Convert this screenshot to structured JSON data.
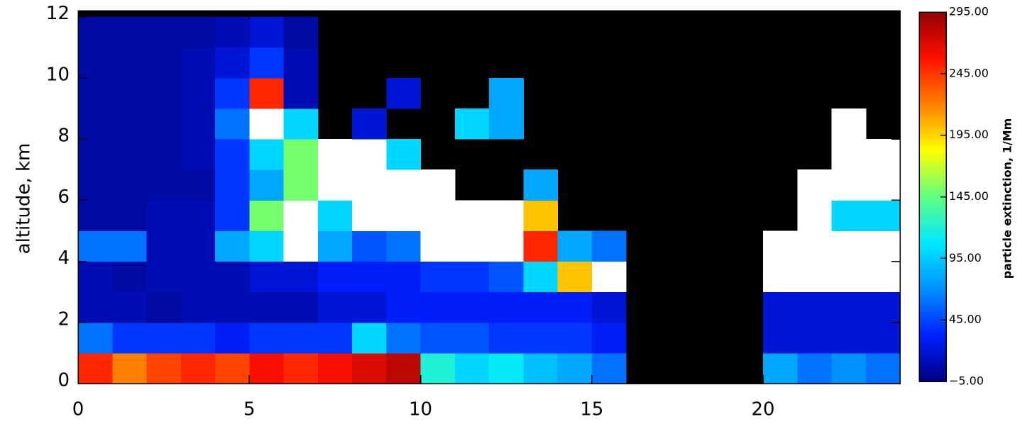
{
  "chart_data": {
    "type": "heatmap",
    "ylabel": "altitude, km",
    "colorbar_label": "particle extinction, 1/Mm",
    "x_edges": [
      0,
      1,
      2,
      3,
      4,
      5,
      6,
      7,
      8,
      9,
      10,
      11,
      12,
      13,
      14,
      15,
      16,
      17,
      18,
      19,
      20,
      21,
      22,
      23,
      24
    ],
    "y_edges": [
      0,
      1,
      2,
      3,
      4,
      5,
      6,
      7,
      8,
      9,
      10,
      11,
      12
    ],
    "z": [
      [
        250,
        220,
        240,
        250,
        240,
        260,
        250,
        260,
        270,
        280,
        120,
        100,
        110,
        90,
        80,
        60,
        null,
        null,
        null,
        null,
        80,
        60,
        70,
        60
      ],
      [
        60,
        40,
        40,
        40,
        30,
        40,
        40,
        40,
        100,
        60,
        50,
        50,
        40,
        40,
        40,
        30,
        null,
        null,
        null,
        null,
        20,
        20,
        20,
        20
      ],
      [
        10,
        10,
        5,
        10,
        10,
        10,
        10,
        20,
        20,
        30,
        30,
        30,
        30,
        30,
        30,
        20,
        null,
        null,
        null,
        null,
        20,
        20,
        20,
        20
      ],
      [
        10,
        5,
        10,
        10,
        10,
        20,
        20,
        30,
        30,
        30,
        40,
        40,
        50,
        100,
        200,
        300,
        null,
        null,
        null,
        null,
        300,
        300,
        300,
        300
      ],
      [
        60,
        60,
        10,
        10,
        80,
        100,
        300,
        80,
        50,
        60,
        300,
        300,
        300,
        250,
        80,
        60,
        null,
        null,
        null,
        null,
        300,
        300,
        300,
        300
      ],
      [
        5,
        5,
        10,
        10,
        40,
        150,
        300,
        100,
        300,
        300,
        300,
        300,
        300,
        200,
        null,
        null,
        null,
        null,
        null,
        null,
        null,
        300,
        100,
        100
      ],
      [
        5,
        5,
        5,
        5,
        40,
        80,
        150,
        300,
        300,
        300,
        300,
        null,
        null,
        80,
        null,
        null,
        null,
        null,
        null,
        null,
        null,
        300,
        300,
        300
      ],
      [
        5,
        5,
        5,
        10,
        40,
        100,
        150,
        300,
        300,
        100,
        null,
        null,
        null,
        null,
        null,
        null,
        null,
        null,
        null,
        null,
        null,
        null,
        300,
        300
      ],
      [
        5,
        5,
        5,
        10,
        60,
        300,
        100,
        null,
        20,
        null,
        null,
        100,
        80,
        null,
        null,
        null,
        null,
        null,
        null,
        null,
        null,
        null,
        300,
        null
      ],
      [
        5,
        5,
        5,
        10,
        40,
        250,
        10,
        null,
        null,
        20,
        null,
        null,
        80,
        null,
        null,
        null,
        null,
        null,
        null,
        null,
        null,
        null,
        null,
        null
      ],
      [
        5,
        5,
        5,
        10,
        20,
        40,
        10,
        null,
        null,
        null,
        null,
        null,
        null,
        null,
        null,
        null,
        null,
        null,
        null,
        null,
        null,
        null,
        null,
        null
      ],
      [
        5,
        5,
        5,
        5,
        10,
        20,
        5,
        null,
        null,
        null,
        null,
        null,
        null,
        null,
        null,
        null,
        null,
        null,
        null,
        null,
        null,
        null,
        null,
        null
      ]
    ],
    "xlim": [
      0,
      24
    ],
    "xticks": [
      0,
      5,
      10,
      15,
      20
    ],
    "ylim": [
      0,
      12.2
    ],
    "yticks": [
      0,
      2,
      4,
      6,
      8,
      10,
      12
    ],
    "clim": [
      -5,
      295
    ],
    "cticks": [
      {
        "value": -5,
        "label": "−5.00"
      },
      {
        "value": 45,
        "label": "45.00"
      },
      {
        "value": 95,
        "label": "95.00"
      },
      {
        "value": 145,
        "label": "145.00"
      },
      {
        "value": 195,
        "label": "195.00"
      },
      {
        "value": 245,
        "label": "245.00"
      },
      {
        "value": 295,
        "label": "295.00"
      }
    ],
    "colorscale": [
      "#000080",
      "#0020ff",
      "#0090ff",
      "#00e8ff",
      "#60ff80",
      "#ffff00",
      "#ff8000",
      "#ff1000",
      "#900000"
    ],
    "over_color": "#ffffff",
    "missing_color": "#000000"
  }
}
